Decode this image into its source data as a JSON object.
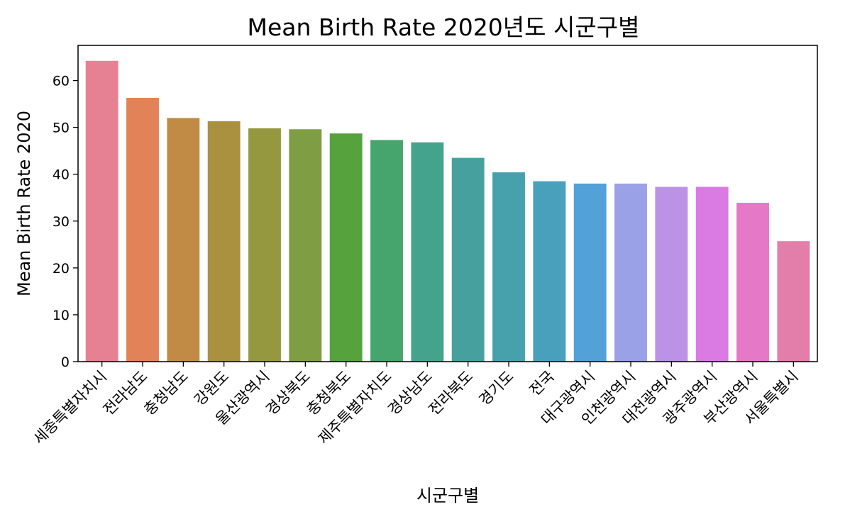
{
  "chart_data": {
    "type": "bar",
    "title": "Mean Birth Rate  2020년도 시군구별",
    "xlabel": "시군구별",
    "ylabel": "Mean Birth Rate 2020",
    "ylim": [
      0,
      67.5
    ],
    "yticks": [
      0,
      10,
      20,
      30,
      40,
      50,
      60
    ],
    "grid": false,
    "categories": [
      "세종특별자치시",
      "전라남도",
      "충청남도",
      "강원도",
      "울산광역시",
      "경상북도",
      "충청북도",
      "제주특별자치도",
      "경상남도",
      "전라북도",
      "경기도",
      "전국",
      "대구광역시",
      "인천광역시",
      "대전광역시",
      "광주광역시",
      "부산광역시",
      "서울특별시"
    ],
    "values": [
      64.2,
      56.3,
      52.0,
      51.3,
      49.8,
      49.6,
      48.7,
      47.3,
      46.8,
      43.5,
      40.4,
      38.5,
      38.0,
      38.0,
      37.3,
      37.3,
      33.9,
      25.7
    ],
    "colors": [
      "#e68193",
      "#e18259",
      "#c28b45",
      "#a99140",
      "#969840",
      "#7f9d42",
      "#56a23d",
      "#45a56c",
      "#44a48b",
      "#46a19e",
      "#47a1ac",
      "#48a0bd",
      "#52a1d8",
      "#9aa1e6",
      "#bb92e6",
      "#d97be3",
      "#e579c8",
      "#e37eaa"
    ]
  }
}
